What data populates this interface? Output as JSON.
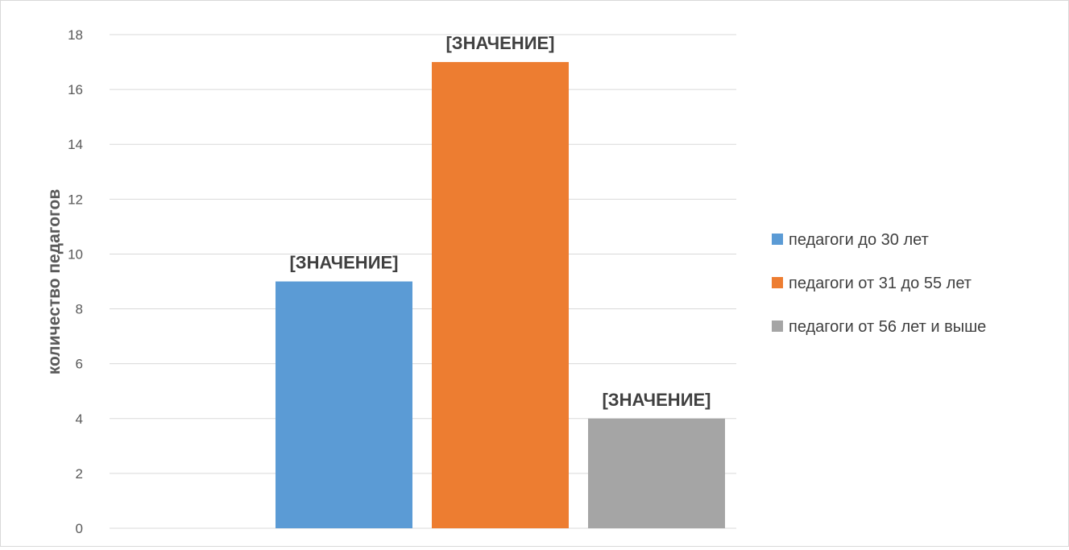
{
  "chart_data": {
    "type": "bar",
    "title": "",
    "xlabel": "",
    "ylabel": "количество педагогов",
    "ylim": [
      0,
      18
    ],
    "yticks": [
      0,
      2,
      4,
      6,
      8,
      10,
      12,
      14,
      16,
      18
    ],
    "grid": true,
    "legend_position": "right",
    "series": [
      {
        "name": "педагоги до 30 лет",
        "value": 9,
        "color": "#5b9bd5",
        "label": "[ЗНАЧЕНИЕ]"
      },
      {
        "name": "педагоги от 31 до 55 лет",
        "value": 17,
        "color": "#ed7d31",
        "label": "[ЗНАЧЕНИЕ]"
      },
      {
        "name": "педагоги от 56 лет и выше",
        "value": 4,
        "color": "#a5a5a5",
        "label": "[ЗНАЧЕНИЕ]"
      }
    ]
  }
}
